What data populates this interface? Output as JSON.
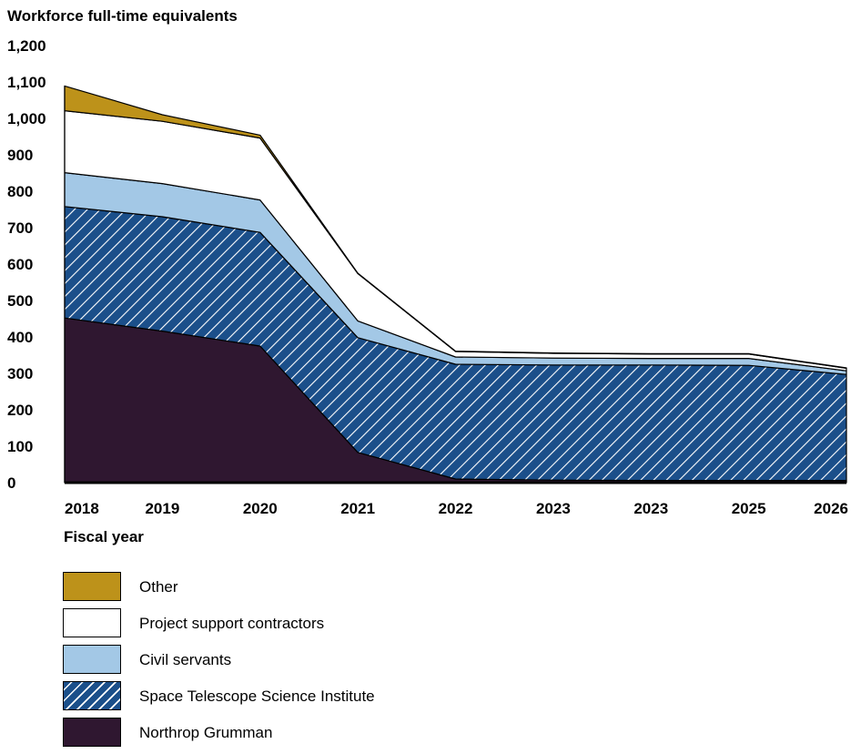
{
  "chart_data": {
    "type": "area",
    "stacked": true,
    "title": "Workforce full-time equivalents",
    "xlabel": "Fiscal year",
    "ylabel": "",
    "x": [
      "2018",
      "2019",
      "2020",
      "2021",
      "2022",
      "2023",
      "2023",
      "2025",
      "2026"
    ],
    "ylim": [
      0,
      1200
    ],
    "yticks": [
      0,
      100,
      200,
      300,
      400,
      500,
      600,
      700,
      800,
      900,
      1000,
      1100,
      1200
    ],
    "ytick_labels": [
      "0",
      "100",
      "200",
      "300",
      "400",
      "500",
      "600",
      "700",
      "800",
      "900",
      "1,000",
      "1,100",
      "1,200"
    ],
    "grid": false,
    "legend_position": "bottom-left",
    "series": [
      {
        "name": "Northrop Grumman",
        "color": "#2f1730",
        "pattern": "solid",
        "values": [
          452,
          416,
          375,
          83,
          10,
          7,
          6,
          6,
          6
        ]
      },
      {
        "name": "Space Telescope Science Institute",
        "color": "#1b4f8a",
        "pattern": "white-diagonal-hatch",
        "values": [
          306,
          314,
          312,
          315,
          315,
          316,
          317,
          316,
          291
        ]
      },
      {
        "name": "Civil servants",
        "color": "#a3c8e6",
        "pattern": "solid",
        "values": [
          93,
          91,
          89,
          46,
          20,
          19,
          18,
          19,
          10
        ]
      },
      {
        "name": "Project support contractors",
        "color": "#ffffff",
        "pattern": "solid",
        "values": [
          170,
          171,
          170,
          130,
          15,
          13,
          12,
          12,
          7
        ]
      },
      {
        "name": "Other",
        "color": "#bd921a",
        "pattern": "solid",
        "values": [
          68,
          18,
          8,
          1,
          1,
          1,
          1,
          1,
          1
        ]
      }
    ]
  },
  "legend": {
    "other": "Other",
    "psc": "Project support contractors",
    "civil": "Civil servants",
    "stsci": "Space Telescope Science Institute",
    "ng": "Northrop Grumman"
  }
}
